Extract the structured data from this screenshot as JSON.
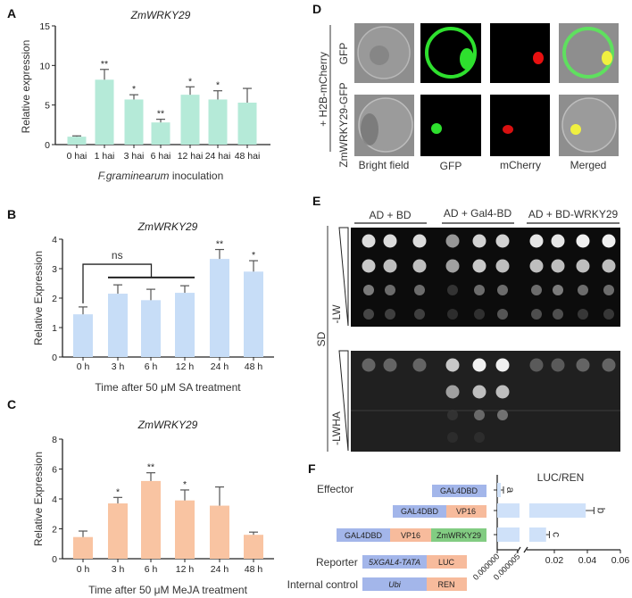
{
  "panel_labels": {
    "a": "A",
    "b": "B",
    "c": "C",
    "d": "D",
    "e": "E",
    "f": "F"
  },
  "colors": {
    "panel_a_bars": "#b5ead8",
    "panel_b_bars": "#c7ddf7",
    "panel_c_bars": "#f9c4a2",
    "construct_blue": "#a3b6ea",
    "construct_orange": "#f7bb9c",
    "construct_green": "#82cc82",
    "luc_bars": "#cfe1f9"
  },
  "chart_data": [
    {
      "type": "bar",
      "title": "ZmWRKY29",
      "xlabel_italic": "F.graminearum",
      "xlabel_rest": " inoculation",
      "ylabel": "Relative expression",
      "categories": [
        "0 hai",
        "1 hai",
        "3 hai",
        "6 hai",
        "12 hai",
        "24 hai",
        "48 hai"
      ],
      "values": [
        1.0,
        8.2,
        5.7,
        2.8,
        6.3,
        5.7,
        5.3
      ],
      "errors": [
        0.1,
        1.3,
        0.6,
        0.4,
        1.0,
        1.1,
        1.8
      ],
      "significance": [
        "",
        "**",
        "*",
        "**",
        "*",
        "*",
        ""
      ],
      "ylim": [
        0,
        15
      ],
      "yticks": [
        0,
        5,
        10,
        15
      ]
    },
    {
      "type": "bar",
      "title": "ZmWRKY29",
      "xlabel": "Time after 50 μM SA treatment",
      "ylabel": "Relative Expression",
      "categories": [
        "0 h",
        "3 h",
        "6 h",
        "12 h",
        "24 h",
        "48 h"
      ],
      "values": [
        1.45,
        2.15,
        1.93,
        2.18,
        3.33,
        2.9
      ],
      "errors": [
        0.25,
        0.3,
        0.37,
        0.24,
        0.32,
        0.37
      ],
      "significance": [
        "",
        "",
        "",
        "",
        "**",
        "*"
      ],
      "annotation": {
        "text": "ns",
        "from": "0 h",
        "to": [
          "3 h",
          "12 h"
        ],
        "level": 3.15,
        "group_level": 2.7
      },
      "ylim": [
        0,
        4
      ],
      "yticks": [
        0,
        1,
        2,
        3,
        4
      ]
    },
    {
      "type": "bar",
      "title": "ZmWRKY29",
      "xlabel": "Time after 50 μM MeJA treatment",
      "ylabel": "Relative Expression",
      "categories": [
        "0 h",
        "3 h",
        "6 h",
        "12 h",
        "24 h",
        "48 h"
      ],
      "values": [
        1.45,
        3.7,
        5.2,
        3.9,
        3.55,
        1.6
      ],
      "errors": [
        0.4,
        0.4,
        0.55,
        0.7,
        1.25,
        0.18
      ],
      "significance": [
        "",
        "*",
        "**",
        "*",
        "",
        ""
      ],
      "ylim": [
        0,
        8
      ],
      "yticks": [
        0,
        2,
        4,
        6,
        8
      ]
    },
    {
      "type": "bar",
      "orientation": "horizontal",
      "title": "LUC/REN",
      "categories": [
        "GAL4DBD",
        "GAL4DBD + VP16",
        "GAL4DBD + VP16 + ZmWRKY29"
      ],
      "values": [
        8e-07,
        0.039,
        0.015
      ],
      "errors": [
        2e-07,
        0.005,
        0.002
      ],
      "letters": [
        "a",
        "b",
        "c"
      ],
      "axis_break": [
        5e-06,
        0.0
      ],
      "xticks_low": [
        "0.000000",
        "0.000005"
      ],
      "xticks_high": [
        0.02,
        0.04,
        0.06
      ],
      "xticks_high_labels": [
        "0.02",
        "0.04",
        "0.06"
      ]
    }
  ],
  "panel_d": {
    "group_label": "+ H2B-mCherry",
    "rows": [
      "GFP",
      "ZmWRKY29-GFP"
    ],
    "columns": [
      "Bright field",
      "GFP",
      "mCherry",
      "Merged"
    ]
  },
  "panel_e": {
    "groups": [
      "AD + BD",
      "AD + Gal4-BD",
      "AD + BD-WRKY29"
    ],
    "medium": "SD",
    "plates": [
      {
        "label": "-LW",
        "growth": [
          [
            0.9,
            0.9,
            0.9,
            0.55,
            0.85,
            0.85,
            0.95,
            0.95,
            1,
            1
          ],
          [
            0.8,
            0.75,
            0.75,
            0.6,
            0.8,
            0.75,
            0.75,
            0.75,
            0.75,
            0.75
          ],
          [
            0.6,
            0.5,
            0.5,
            0.12,
            0.5,
            0.5,
            0.5,
            0.6,
            0.5,
            0.5
          ],
          [
            0.25,
            0.2,
            0.2,
            0.08,
            0.1,
            0.35,
            0.3,
            0.3,
            0.15,
            0.15
          ]
        ]
      },
      {
        "label": "-LWHA",
        "growth": [
          [
            0.3,
            0.3,
            0.3,
            0.8,
            1,
            1,
            0.25,
            0.25,
            0.3,
            0.3
          ],
          [
            0,
            0,
            0,
            0.6,
            0.75,
            0.75,
            0,
            0,
            0,
            0
          ],
          [
            0,
            0,
            0,
            0.08,
            0.45,
            0.5,
            0,
            0,
            0,
            0
          ],
          [
            0,
            0,
            0,
            0.04,
            0.05,
            0,
            0,
            0,
            0,
            0
          ]
        ]
      }
    ]
  },
  "panel_f": {
    "effector_label": "Effector",
    "reporter_label": "Reporter",
    "internal_label": "Internal control",
    "effectors": [
      [
        "GAL4DBD"
      ],
      [
        "GAL4DBD",
        "VP16"
      ],
      [
        "GAL4DBD",
        "VP16",
        "ZmWRKY29"
      ]
    ],
    "reporter": [
      "5XGAL4-TATA",
      "LUC"
    ],
    "internal": [
      "Ubi",
      "REN"
    ]
  }
}
